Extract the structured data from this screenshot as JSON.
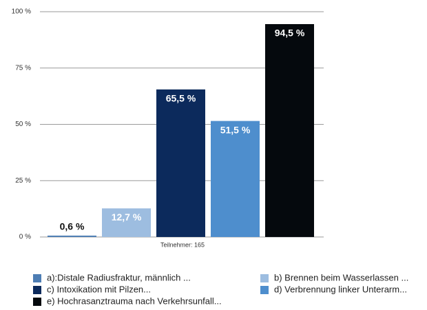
{
  "chart_data": {
    "type": "bar",
    "x_label": "Teilnehmer: 165",
    "categories": [
      "a):Distale Radiusfraktur, männlich ...",
      "b) Brennen beim Wasserlassen ...",
      "c) Intoxikation mit Pilzen...",
      "d) Verbrennung linker Unterarm...",
      "e) Hochrasanztrauma nach Verkehrsunfall..."
    ],
    "values": [
      0.6,
      12.7,
      65.5,
      51.5,
      94.5
    ],
    "value_labels": [
      "0,6 %",
      "12,7 %",
      "65,5 %",
      "51,5 %",
      "94,5 %"
    ],
    "colors": [
      "#4d7db4",
      "#9dbde0",
      "#0c2a5c",
      "#4e8ecd",
      "#05090d"
    ],
    "ylim": [
      0,
      100
    ],
    "yticks": [
      {
        "value": 0,
        "label": "0 %"
      },
      {
        "value": 25,
        "label": "25 %"
      },
      {
        "value": 50,
        "label": "50 %"
      },
      {
        "value": 75,
        "label": "75 %"
      },
      {
        "value": 100,
        "label": "100 %"
      }
    ],
    "grid": true
  }
}
